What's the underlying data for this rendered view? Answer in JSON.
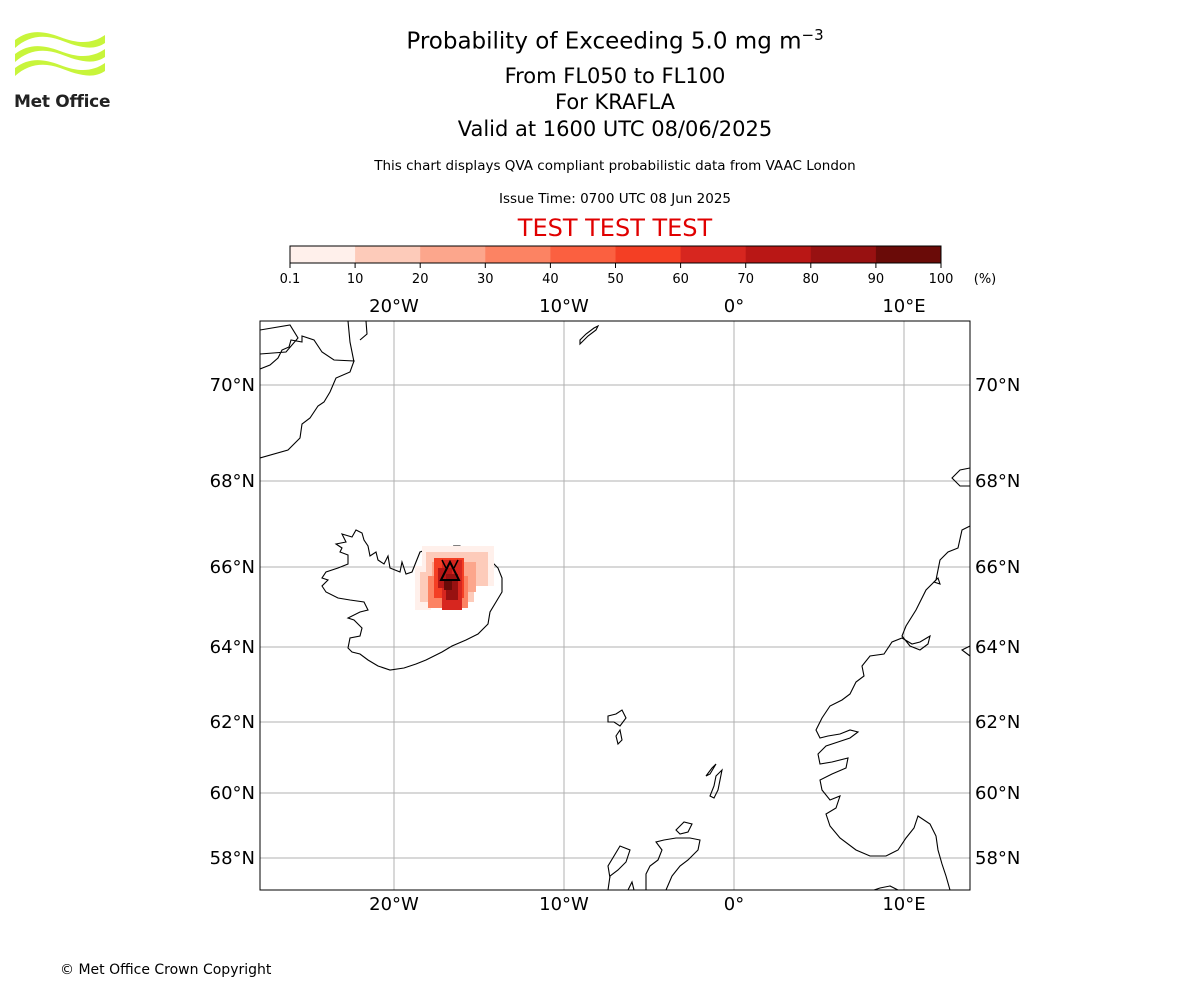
{
  "logo": {
    "text": "Met Office",
    "color": "#c8f53b"
  },
  "title": {
    "main": "Probability of Exceeding 5.0 mg m",
    "superscript": "−3",
    "levels": "From FL050 to FL100",
    "volcano": "For KRAFLA",
    "valid": "Valid at 1600 UTC 08/06/2025"
  },
  "description": "This chart displays QVA compliant probabilistic data from VAAC London",
  "issue_time": "Issue Time: 0700 UTC 08 Jun 2025",
  "test_banner": "TEST TEST TEST",
  "colorbar": {
    "ticks": [
      "0.1",
      "10",
      "20",
      "30",
      "40",
      "50",
      "60",
      "70",
      "80",
      "90",
      "100"
    ],
    "unit": "(%)",
    "colors": [
      "#fff0eb",
      "#fdcbba",
      "#fca68c",
      "#fc8363",
      "#fb6040",
      "#f43f24",
      "#d7261f",
      "#b91715",
      "#981111",
      "#6a0b08"
    ]
  },
  "map": {
    "lon_labels": [
      "20°W",
      "10°W",
      "0°",
      "10°E"
    ],
    "lat_labels": [
      "70°N",
      "68°N",
      "66°N",
      "64°N",
      "62°N",
      "60°N",
      "58°N"
    ],
    "volcano_marker": "triangle"
  },
  "copyright": "© Met Office Crown Copyright"
}
